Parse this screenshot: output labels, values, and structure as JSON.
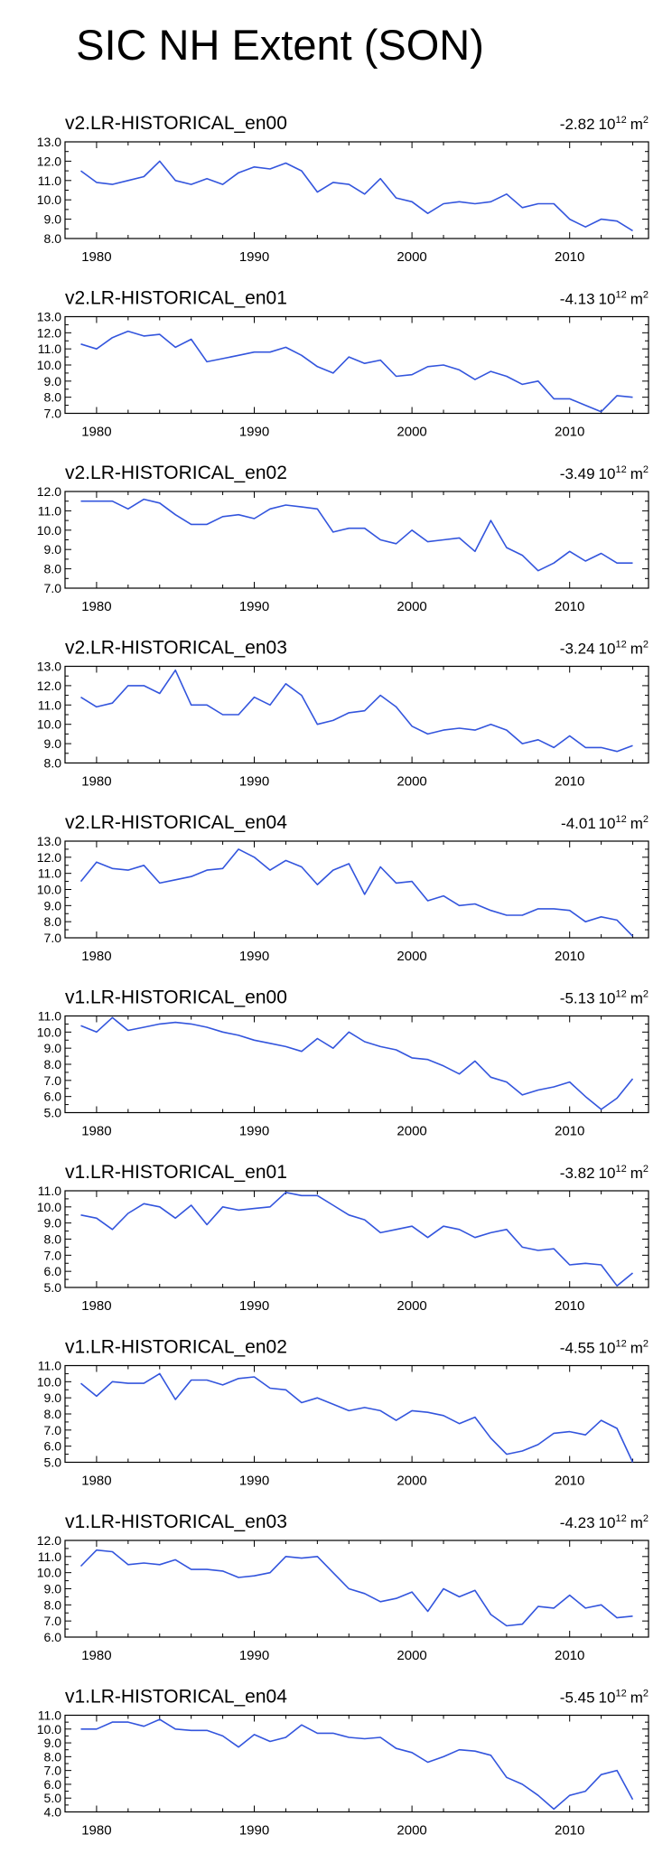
{
  "title": "SIC NH Extent (SON)",
  "colors": {
    "line": "#3355dd",
    "axis": "#000000"
  },
  "chart_data": [
    {
      "type": "line",
      "title": "v2.LR-HISTORICAL_en00",
      "trend": "-2.82",
      "trend_unit_pre": "10",
      "trend_unit_exp": "12",
      "trend_unit_post": "m",
      "trend_unit_post_exp": "2",
      "xlim": [
        1978,
        2015
      ],
      "xticks": [
        1980,
        1990,
        2000,
        2010
      ],
      "ylim": [
        8.0,
        13.0
      ],
      "yticks": [
        "8.0",
        "9.0",
        "10.0",
        "11.0",
        "12.0",
        "13.0"
      ],
      "x": [
        1979,
        1980,
        1981,
        1982,
        1983,
        1984,
        1985,
        1986,
        1987,
        1988,
        1989,
        1990,
        1991,
        1992,
        1993,
        1994,
        1995,
        1996,
        1997,
        1998,
        1999,
        2000,
        2001,
        2002,
        2003,
        2004,
        2005,
        2006,
        2007,
        2008,
        2009,
        2010,
        2011,
        2012,
        2013,
        2014
      ],
      "values": [
        11.5,
        10.9,
        10.8,
        11.0,
        11.2,
        12.0,
        11.0,
        10.8,
        11.1,
        10.8,
        11.4,
        11.7,
        11.6,
        11.9,
        11.5,
        10.4,
        10.9,
        10.8,
        10.3,
        11.1,
        10.1,
        9.9,
        9.3,
        9.8,
        9.9,
        9.8,
        9.9,
        10.3,
        9.6,
        9.8,
        9.8,
        9.0,
        8.6,
        9.0,
        8.9,
        8.4
      ]
    },
    {
      "type": "line",
      "title": "v2.LR-HISTORICAL_en01",
      "trend": "-4.13",
      "trend_unit_pre": "10",
      "trend_unit_exp": "12",
      "trend_unit_post": "m",
      "trend_unit_post_exp": "2",
      "xlim": [
        1978,
        2015
      ],
      "xticks": [
        1980,
        1990,
        2000,
        2010
      ],
      "ylim": [
        7.0,
        13.0
      ],
      "yticks": [
        "7.0",
        "8.0",
        "9.0",
        "10.0",
        "11.0",
        "12.0",
        "13.0"
      ],
      "x": [
        1979,
        1980,
        1981,
        1982,
        1983,
        1984,
        1985,
        1986,
        1987,
        1988,
        1989,
        1990,
        1991,
        1992,
        1993,
        1994,
        1995,
        1996,
        1997,
        1998,
        1999,
        2000,
        2001,
        2002,
        2003,
        2004,
        2005,
        2006,
        2007,
        2008,
        2009,
        2010,
        2011,
        2012,
        2013,
        2014
      ],
      "values": [
        11.3,
        11.0,
        11.7,
        12.1,
        11.8,
        11.9,
        11.1,
        11.6,
        10.2,
        10.4,
        10.6,
        10.8,
        10.8,
        11.1,
        10.6,
        9.9,
        9.5,
        10.5,
        10.1,
        10.3,
        9.3,
        9.4,
        9.9,
        10.0,
        9.7,
        9.1,
        9.6,
        9.3,
        8.8,
        9.0,
        7.9,
        7.9,
        7.5,
        7.1,
        8.1,
        8.0
      ]
    },
    {
      "type": "line",
      "title": "v2.LR-HISTORICAL_en02",
      "trend": "-3.49",
      "trend_unit_pre": "10",
      "trend_unit_exp": "12",
      "trend_unit_post": "m",
      "trend_unit_post_exp": "2",
      "xlim": [
        1978,
        2015
      ],
      "xticks": [
        1980,
        1990,
        2000,
        2010
      ],
      "ylim": [
        7.0,
        12.0
      ],
      "yticks": [
        "7.0",
        "8.0",
        "9.0",
        "10.0",
        "11.0",
        "12.0"
      ],
      "x": [
        1979,
        1980,
        1981,
        1982,
        1983,
        1984,
        1985,
        1986,
        1987,
        1988,
        1989,
        1990,
        1991,
        1992,
        1993,
        1994,
        1995,
        1996,
        1997,
        1998,
        1999,
        2000,
        2001,
        2002,
        2003,
        2004,
        2005,
        2006,
        2007,
        2008,
        2009,
        2010,
        2011,
        2012,
        2013,
        2014
      ],
      "values": [
        11.5,
        11.5,
        11.5,
        11.1,
        11.6,
        11.4,
        10.8,
        10.3,
        10.3,
        10.7,
        10.8,
        10.6,
        11.1,
        11.3,
        11.2,
        11.1,
        9.9,
        10.1,
        10.1,
        9.5,
        9.3,
        10.0,
        9.4,
        9.5,
        9.6,
        8.9,
        10.5,
        9.1,
        8.7,
        7.9,
        8.3,
        8.9,
        8.4,
        8.8,
        8.3,
        8.3
      ]
    },
    {
      "type": "line",
      "title": "v2.LR-HISTORICAL_en03",
      "trend": "-3.24",
      "trend_unit_pre": "10",
      "trend_unit_exp": "12",
      "trend_unit_post": "m",
      "trend_unit_post_exp": "2",
      "xlim": [
        1978,
        2015
      ],
      "xticks": [
        1980,
        1990,
        2000,
        2010
      ],
      "ylim": [
        8.0,
        13.0
      ],
      "yticks": [
        "8.0",
        "9.0",
        "10.0",
        "11.0",
        "12.0",
        "13.0"
      ],
      "x": [
        1979,
        1980,
        1981,
        1982,
        1983,
        1984,
        1985,
        1986,
        1987,
        1988,
        1989,
        1990,
        1991,
        1992,
        1993,
        1994,
        1995,
        1996,
        1997,
        1998,
        1999,
        2000,
        2001,
        2002,
        2003,
        2004,
        2005,
        2006,
        2007,
        2008,
        2009,
        2010,
        2011,
        2012,
        2013,
        2014
      ],
      "values": [
        11.4,
        10.9,
        11.1,
        12.0,
        12.0,
        11.6,
        12.8,
        11.0,
        11.0,
        10.5,
        10.5,
        11.4,
        11.0,
        12.1,
        11.5,
        10.0,
        10.2,
        10.6,
        10.7,
        11.5,
        10.9,
        9.9,
        9.5,
        9.7,
        9.8,
        9.7,
        10.0,
        9.7,
        9.0,
        9.2,
        8.8,
        9.4,
        8.8,
        8.8,
        8.6,
        8.9
      ]
    },
    {
      "type": "line",
      "title": "v2.LR-HISTORICAL_en04",
      "trend": "-4.01",
      "trend_unit_pre": "10",
      "trend_unit_exp": "12",
      "trend_unit_post": "m",
      "trend_unit_post_exp": "2",
      "xlim": [
        1978,
        2015
      ],
      "xticks": [
        1980,
        1990,
        2000,
        2010
      ],
      "ylim": [
        7.0,
        13.0
      ],
      "yticks": [
        "7.0",
        "8.0",
        "9.0",
        "10.0",
        "11.0",
        "12.0",
        "13.0"
      ],
      "x": [
        1979,
        1980,
        1981,
        1982,
        1983,
        1984,
        1985,
        1986,
        1987,
        1988,
        1989,
        1990,
        1991,
        1992,
        1993,
        1994,
        1995,
        1996,
        1997,
        1998,
        1999,
        2000,
        2001,
        2002,
        2003,
        2004,
        2005,
        2006,
        2007,
        2008,
        2009,
        2010,
        2011,
        2012,
        2013,
        2014
      ],
      "values": [
        10.5,
        11.7,
        11.3,
        11.2,
        11.5,
        10.4,
        10.6,
        10.8,
        11.2,
        11.3,
        12.5,
        12.0,
        11.2,
        11.8,
        11.4,
        10.3,
        11.2,
        11.6,
        9.7,
        11.4,
        10.4,
        10.5,
        9.3,
        9.6,
        9.0,
        9.1,
        8.7,
        8.4,
        8.4,
        8.8,
        8.8,
        8.7,
        8.0,
        8.3,
        8.1,
        7.1
      ]
    },
    {
      "type": "line",
      "title": "v1.LR-HISTORICAL_en00",
      "trend": "-5.13",
      "trend_unit_pre": "10",
      "trend_unit_exp": "12",
      "trend_unit_post": "m",
      "trend_unit_post_exp": "2",
      "xlim": [
        1978,
        2015
      ],
      "xticks": [
        1980,
        1990,
        2000,
        2010
      ],
      "ylim": [
        5.0,
        11.0
      ],
      "yticks": [
        "5.0",
        "6.0",
        "7.0",
        "8.0",
        "9.0",
        "10.0",
        "11.0"
      ],
      "x": [
        1979,
        1980,
        1981,
        1982,
        1983,
        1984,
        1985,
        1986,
        1987,
        1988,
        1989,
        1990,
        1991,
        1992,
        1993,
        1994,
        1995,
        1996,
        1997,
        1998,
        1999,
        2000,
        2001,
        2002,
        2003,
        2004,
        2005,
        2006,
        2007,
        2008,
        2009,
        2010,
        2011,
        2012,
        2013,
        2014
      ],
      "values": [
        10.4,
        10.0,
        10.9,
        10.1,
        10.3,
        10.5,
        10.6,
        10.5,
        10.3,
        10.0,
        9.8,
        9.5,
        9.3,
        9.1,
        8.8,
        9.6,
        9.0,
        10.0,
        9.4,
        9.1,
        8.9,
        8.4,
        8.3,
        7.9,
        7.4,
        8.2,
        7.2,
        6.9,
        6.1,
        6.4,
        6.6,
        6.9,
        6.0,
        5.2,
        5.9,
        7.1
      ]
    },
    {
      "type": "line",
      "title": "v1.LR-HISTORICAL_en01",
      "trend": "-3.82",
      "trend_unit_pre": "10",
      "trend_unit_exp": "12",
      "trend_unit_post": "m",
      "trend_unit_post_exp": "2",
      "xlim": [
        1978,
        2015
      ],
      "xticks": [
        1980,
        1990,
        2000,
        2010
      ],
      "ylim": [
        5.0,
        11.0
      ],
      "yticks": [
        "5.0",
        "6.0",
        "7.0",
        "8.0",
        "9.0",
        "10.0",
        "11.0"
      ],
      "x": [
        1979,
        1980,
        1981,
        1982,
        1983,
        1984,
        1985,
        1986,
        1987,
        1988,
        1989,
        1990,
        1991,
        1992,
        1993,
        1994,
        1995,
        1996,
        1997,
        1998,
        1999,
        2000,
        2001,
        2002,
        2003,
        2004,
        2005,
        2006,
        2007,
        2008,
        2009,
        2010,
        2011,
        2012,
        2013,
        2014
      ],
      "values": [
        9.5,
        9.3,
        8.6,
        9.6,
        10.2,
        10.0,
        9.3,
        10.1,
        8.9,
        10.0,
        9.8,
        9.9,
        10.0,
        10.9,
        10.7,
        10.7,
        10.1,
        9.5,
        9.2,
        8.4,
        8.6,
        8.8,
        8.1,
        8.8,
        8.6,
        8.1,
        8.4,
        8.6,
        7.5,
        7.3,
        7.4,
        6.4,
        6.5,
        6.4,
        5.1,
        5.9
      ]
    },
    {
      "type": "line",
      "title": "v1.LR-HISTORICAL_en02",
      "trend": "-4.55",
      "trend_unit_pre": "10",
      "trend_unit_exp": "12",
      "trend_unit_post": "m",
      "trend_unit_post_exp": "2",
      "xlim": [
        1978,
        2015
      ],
      "xticks": [
        1980,
        1990,
        2000,
        2010
      ],
      "ylim": [
        5.0,
        11.0
      ],
      "yticks": [
        "5.0",
        "6.0",
        "7.0",
        "8.0",
        "9.0",
        "10.0",
        "11.0"
      ],
      "x": [
        1979,
        1980,
        1981,
        1982,
        1983,
        1984,
        1985,
        1986,
        1987,
        1988,
        1989,
        1990,
        1991,
        1992,
        1993,
        1994,
        1995,
        1996,
        1997,
        1998,
        1999,
        2000,
        2001,
        2002,
        2003,
        2004,
        2005,
        2006,
        2007,
        2008,
        2009,
        2010,
        2011,
        2012,
        2013,
        2014
      ],
      "values": [
        9.9,
        9.1,
        10.0,
        9.9,
        9.9,
        10.5,
        8.9,
        10.1,
        10.1,
        9.8,
        10.2,
        10.3,
        9.6,
        9.5,
        8.7,
        9.0,
        8.6,
        8.2,
        8.4,
        8.2,
        7.6,
        8.2,
        8.1,
        7.9,
        7.4,
        7.8,
        6.5,
        5.5,
        5.7,
        6.1,
        6.8,
        6.9,
        6.7,
        7.6,
        7.1,
        5.0
      ]
    },
    {
      "type": "line",
      "title": "v1.LR-HISTORICAL_en03",
      "trend": "-4.23",
      "trend_unit_pre": "10",
      "trend_unit_exp": "12",
      "trend_unit_post": "m",
      "trend_unit_post_exp": "2",
      "xlim": [
        1978,
        2015
      ],
      "xticks": [
        1980,
        1990,
        2000,
        2010
      ],
      "ylim": [
        6.0,
        12.0
      ],
      "yticks": [
        "6.0",
        "7.0",
        "8.0",
        "9.0",
        "10.0",
        "11.0",
        "12.0"
      ],
      "x": [
        1979,
        1980,
        1981,
        1982,
        1983,
        1984,
        1985,
        1986,
        1987,
        1988,
        1989,
        1990,
        1991,
        1992,
        1993,
        1994,
        1995,
        1996,
        1997,
        1998,
        1999,
        2000,
        2001,
        2002,
        2003,
        2004,
        2005,
        2006,
        2007,
        2008,
        2009,
        2010,
        2011,
        2012,
        2013,
        2014
      ],
      "values": [
        10.4,
        11.4,
        11.3,
        10.5,
        10.6,
        10.5,
        10.8,
        10.2,
        10.2,
        10.1,
        9.7,
        9.8,
        10.0,
        11.0,
        10.9,
        11.0,
        10.0,
        9.0,
        8.7,
        8.2,
        8.4,
        8.8,
        7.6,
        9.0,
        8.5,
        8.9,
        7.4,
        6.7,
        6.8,
        7.9,
        7.8,
        8.6,
        7.8,
        8.0,
        7.2,
        7.3
      ]
    },
    {
      "type": "line",
      "title": "v1.LR-HISTORICAL_en04",
      "trend": "-5.45",
      "trend_unit_pre": "10",
      "trend_unit_exp": "12",
      "trend_unit_post": "m",
      "trend_unit_post_exp": "2",
      "xlim": [
        1978,
        2015
      ],
      "xticks": [
        1980,
        1990,
        2000,
        2010
      ],
      "ylim": [
        4.0,
        11.0
      ],
      "yticks": [
        "4.0",
        "5.0",
        "6.0",
        "7.0",
        "8.0",
        "9.0",
        "10.0",
        "11.0"
      ],
      "x": [
        1979,
        1980,
        1981,
        1982,
        1983,
        1984,
        1985,
        1986,
        1987,
        1988,
        1989,
        1990,
        1991,
        1992,
        1993,
        1994,
        1995,
        1996,
        1997,
        1998,
        1999,
        2000,
        2001,
        2002,
        2003,
        2004,
        2005,
        2006,
        2007,
        2008,
        2009,
        2010,
        2011,
        2012,
        2013,
        2014
      ],
      "values": [
        10.0,
        10.0,
        10.5,
        10.5,
        10.2,
        10.7,
        10.0,
        9.9,
        9.9,
        9.5,
        8.7,
        9.6,
        9.1,
        9.4,
        10.3,
        9.7,
        9.7,
        9.4,
        9.3,
        9.4,
        8.6,
        8.3,
        7.6,
        8.0,
        8.5,
        8.4,
        8.1,
        6.5,
        6.0,
        5.2,
        4.2,
        5.2,
        5.5,
        6.7,
        7.0,
        4.9
      ]
    }
  ]
}
